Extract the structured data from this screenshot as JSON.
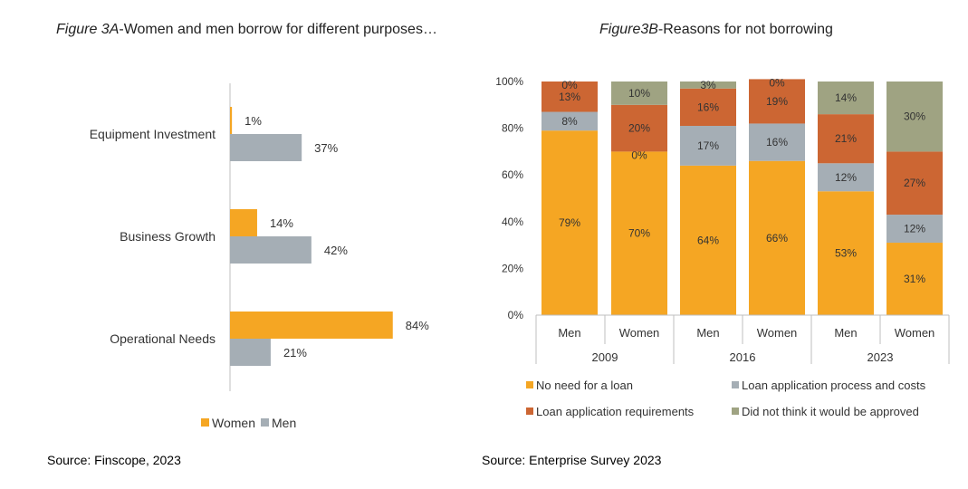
{
  "figure_a": {
    "title_italic": "Figure 3A",
    "title_rest": "-Women and men borrow for different purposes…",
    "source": "Source: Finscope, 2023"
  },
  "figure_b": {
    "title_italic": "Figure3B",
    "title_rest": "-Reasons for not borrowing",
    "source": "Source: Enterprise Survey 2023"
  },
  "chart_data": [
    {
      "type": "bar",
      "orientation": "horizontal",
      "categories": [
        "Equipment Investment",
        "Business Growth",
        "Operational Needs"
      ],
      "series": [
        {
          "name": "Women",
          "values": [
            1,
            14,
            84
          ],
          "labels": [
            "1%",
            "14%",
            "84%"
          ],
          "color": "#F5A623"
        },
        {
          "name": "Men",
          "values": [
            37,
            42,
            21
          ],
          "labels": [
            "37%",
            "42%",
            "21%"
          ],
          "color": "#A5AEB5"
        }
      ],
      "xlim": [
        0,
        100
      ],
      "legend": "bottom"
    },
    {
      "type": "bar",
      "stacked": true,
      "categories": [
        "Men",
        "Women",
        "Men",
        "Women",
        "Men",
        "Women"
      ],
      "groups": [
        "2009",
        "2016",
        "2023"
      ],
      "ylim": [
        0,
        100
      ],
      "yticks": [
        "0%",
        "20%",
        "40%",
        "60%",
        "80%",
        "100%"
      ],
      "series": [
        {
          "name": "No need for a loan",
          "color": "#F5A623",
          "values": [
            79,
            70,
            64,
            66,
            53,
            31
          ],
          "labels": [
            "79%",
            "70%",
            "64%",
            "66%",
            "53%",
            "31%"
          ]
        },
        {
          "name": "Loan application process and costs",
          "color": "#A5AEB5",
          "values": [
            8,
            0,
            17,
            16,
            12,
            12
          ],
          "labels": [
            "8%",
            "0%",
            "17%",
            "16%",
            "12%",
            "12%"
          ]
        },
        {
          "name": "Loan application requirements",
          "color": "#CC6633",
          "values": [
            13,
            20,
            16,
            19,
            21,
            27
          ],
          "labels": [
            "13%",
            "20%",
            "16%",
            "19%",
            "21%",
            "27%"
          ]
        },
        {
          "name": "Did not think it would be approved",
          "color": "#9FA382",
          "values": [
            0,
            10,
            3,
            0,
            14,
            30
          ],
          "labels": [
            "0%",
            "10%",
            "3%",
            "0%",
            "14%",
            "30%"
          ]
        }
      ],
      "legend": "bottom"
    }
  ]
}
